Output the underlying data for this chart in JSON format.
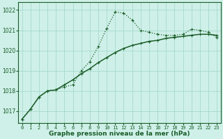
{
  "title": "Graphe pression niveau de la mer (hPa)",
  "background_color": "#cef0e8",
  "grid_color": "#a0d4c8",
  "line_color": "#1a5c28",
  "xlim": [
    -0.5,
    23.5
  ],
  "ylim": [
    1016.4,
    1022.4
  ],
  "yticks": [
    1017,
    1018,
    1019,
    1020,
    1021,
    1022
  ],
  "xticks": [
    0,
    1,
    2,
    3,
    4,
    5,
    6,
    7,
    8,
    9,
    10,
    11,
    12,
    13,
    14,
    15,
    16,
    17,
    18,
    19,
    20,
    21,
    22,
    23
  ],
  "series1_x": [
    0,
    1,
    2,
    3,
    4,
    5,
    6,
    7,
    8,
    9,
    10,
    11,
    12,
    13,
    14,
    15,
    16,
    17,
    18,
    19,
    20,
    21,
    22,
    23
  ],
  "series1_y": [
    1016.6,
    1017.1,
    1017.7,
    1018.0,
    1018.05,
    1018.2,
    1018.3,
    1019.0,
    1019.45,
    1020.2,
    1021.1,
    1021.9,
    1021.85,
    1021.5,
    1021.0,
    1020.9,
    1020.8,
    1020.75,
    1020.75,
    1020.8,
    1021.05,
    1021.0,
    1020.9,
    1020.65
  ],
  "series2_x": [
    0,
    1,
    2,
    3,
    4,
    5,
    6,
    7,
    8,
    9,
    10,
    11,
    12,
    13,
    14,
    15,
    16,
    17,
    18,
    19,
    20,
    21,
    22,
    23
  ],
  "series2_y": [
    1016.6,
    1017.1,
    1017.7,
    1018.0,
    1018.05,
    1018.3,
    1018.55,
    1018.85,
    1019.1,
    1019.4,
    1019.65,
    1019.9,
    1020.1,
    1020.25,
    1020.35,
    1020.45,
    1020.5,
    1020.6,
    1020.65,
    1020.7,
    1020.75,
    1020.8,
    1020.8,
    1020.75
  ],
  "title_fontsize": 6.5
}
